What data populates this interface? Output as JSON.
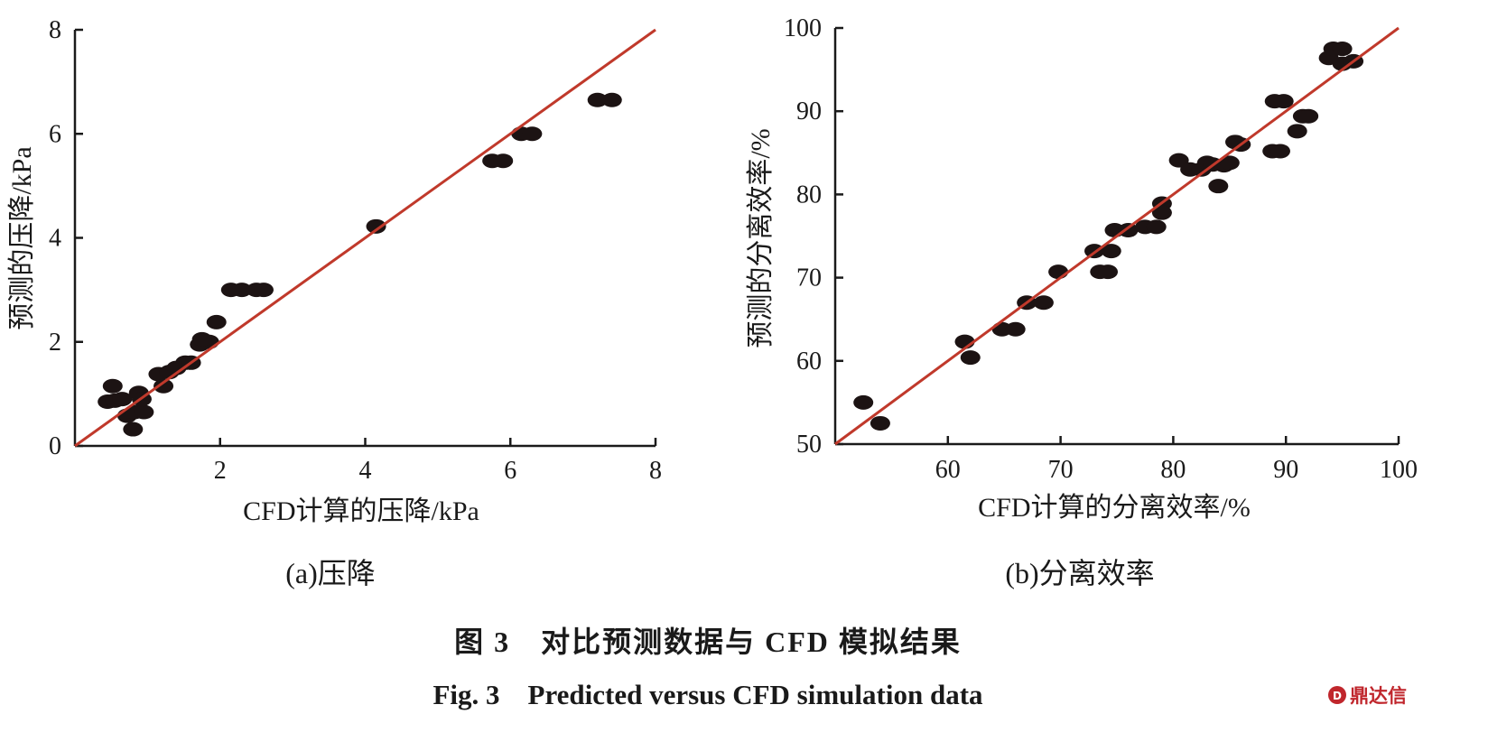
{
  "figure": {
    "caption_cn": "图 3　对比预测数据与 CFD 模拟结果",
    "caption_en": "Fig. 3　Predicted versus CFD simulation data",
    "watermark": "鼎达信"
  },
  "colors": {
    "points": "#1c1313",
    "fit_line": "#c0392b",
    "axes": "#1a1a1a"
  },
  "chart_data": [
    {
      "type": "scatter",
      "subtitle": "(a)压降",
      "xlabel": "CFD计算的压降/kPa",
      "ylabel": "预测的压降/kPa",
      "xlim": [
        0,
        8
      ],
      "ylim": [
        0,
        8
      ],
      "xticks": [
        2,
        4,
        6,
        8
      ],
      "yticks": [
        0,
        2,
        4,
        6,
        8
      ],
      "grid": false,
      "reference_line": {
        "from": [
          0,
          0
        ],
        "to": [
          8,
          8
        ]
      },
      "points": [
        [
          0.45,
          0.85
        ],
        [
          0.55,
          0.87
        ],
        [
          0.52,
          1.15
        ],
        [
          0.65,
          0.9
        ],
        [
          0.72,
          0.58
        ],
        [
          0.82,
          0.65
        ],
        [
          0.8,
          0.32
        ],
        [
          0.88,
          1.02
        ],
        [
          0.95,
          0.65
        ],
        [
          0.92,
          0.9
        ],
        [
          1.15,
          1.38
        ],
        [
          1.22,
          1.15
        ],
        [
          1.3,
          1.42
        ],
        [
          1.4,
          1.5
        ],
        [
          1.52,
          1.6
        ],
        [
          1.6,
          1.6
        ],
        [
          1.72,
          1.95
        ],
        [
          1.85,
          2.0
        ],
        [
          1.75,
          2.05
        ],
        [
          1.95,
          2.38
        ],
        [
          2.15,
          3.0
        ],
        [
          2.3,
          3.0
        ],
        [
          2.5,
          3.0
        ],
        [
          2.6,
          3.0
        ],
        [
          4.15,
          4.22
        ],
        [
          5.75,
          5.48
        ],
        [
          5.9,
          5.48
        ],
        [
          6.15,
          6.0
        ],
        [
          6.3,
          6.0
        ],
        [
          7.2,
          6.65
        ],
        [
          7.4,
          6.65
        ]
      ]
    },
    {
      "type": "scatter",
      "subtitle": "(b)分离效率",
      "xlabel": "CFD计算的分离效率/%",
      "ylabel": "预测的分离效率/%",
      "xlim": [
        50,
        100
      ],
      "ylim": [
        50,
        100
      ],
      "xticks": [
        60,
        70,
        80,
        90,
        100
      ],
      "yticks": [
        50,
        60,
        70,
        80,
        90,
        100
      ],
      "grid": false,
      "reference_line": {
        "from": [
          50,
          50
        ],
        "to": [
          100,
          100
        ]
      },
      "points": [
        [
          52.5,
          55.0
        ],
        [
          54.0,
          52.5
        ],
        [
          61.5,
          62.3
        ],
        [
          62.0,
          60.4
        ],
        [
          64.8,
          63.8
        ],
        [
          66.0,
          63.8
        ],
        [
          67.0,
          67.0
        ],
        [
          68.5,
          67.0
        ],
        [
          69.8,
          70.7
        ],
        [
          73.0,
          73.2
        ],
        [
          73.5,
          70.7
        ],
        [
          74.2,
          70.7
        ],
        [
          74.5,
          73.2
        ],
        [
          74.8,
          75.7
        ],
        [
          76.0,
          75.7
        ],
        [
          77.5,
          76.1
        ],
        [
          78.5,
          76.1
        ],
        [
          79.0,
          78.9
        ],
        [
          79.0,
          77.8
        ],
        [
          80.5,
          84.1
        ],
        [
          81.5,
          83.0
        ],
        [
          82.5,
          83.0
        ],
        [
          83.0,
          83.8
        ],
        [
          83.5,
          83.6
        ],
        [
          84.0,
          81.0
        ],
        [
          84.5,
          83.5
        ],
        [
          85.0,
          83.8
        ],
        [
          85.5,
          86.3
        ],
        [
          86.0,
          86.0
        ],
        [
          88.8,
          85.2
        ],
        [
          89.5,
          85.2
        ],
        [
          89.0,
          91.2
        ],
        [
          89.8,
          91.2
        ],
        [
          91.0,
          87.6
        ],
        [
          91.5,
          89.4
        ],
        [
          92.0,
          89.4
        ],
        [
          93.8,
          96.4
        ],
        [
          94.2,
          97.5
        ],
        [
          95.0,
          97.5
        ],
        [
          95.0,
          95.7
        ],
        [
          96.0,
          96.0
        ]
      ]
    }
  ]
}
